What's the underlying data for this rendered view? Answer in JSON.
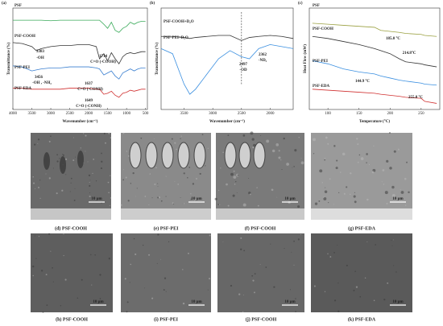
{
  "chart_data": [
    {
      "type": "line",
      "panel": "(a)",
      "xlabel": "Wavenumber (cm⁻¹)",
      "ylabel": "Transmittance (%)",
      "x": [
        4000,
        3750,
        3500,
        3383,
        3250,
        3000,
        2750,
        2500,
        2250,
        2000,
        1800,
        1714,
        1600,
        1500,
        1400,
        1300,
        1200,
        1100,
        1000,
        900,
        800,
        700,
        600,
        500
      ],
      "xlim": [
        4000,
        450
      ],
      "xticks": [
        4000,
        3500,
        3000,
        2500,
        2000,
        1500,
        1000,
        500
      ],
      "ylim": [
        0,
        100
      ],
      "series": [
        {
          "name": "PSF",
          "color": "#3aaa5a",
          "values": [
            88,
            88,
            88,
            88,
            88,
            87.5,
            88,
            88,
            88,
            88,
            88,
            88,
            84,
            80,
            86,
            78,
            76,
            80,
            82,
            86,
            84,
            86,
            87,
            87
          ]
        },
        {
          "name": "PSF-COOH",
          "color": "#333333",
          "values": [
            66,
            65,
            62,
            58,
            60,
            62,
            63,
            63,
            64,
            64,
            62,
            50,
            55,
            48,
            56,
            50,
            45,
            52,
            55,
            56,
            55,
            56,
            57,
            57
          ]
        },
        {
          "name": "PSF-PEI",
          "color": "#3a7fd0",
          "values": [
            43,
            42,
            38,
            39,
            40,
            41,
            41,
            42,
            42,
            42,
            41,
            40,
            34,
            36,
            38,
            33,
            30,
            36,
            38,
            40,
            38,
            40,
            41,
            41
          ]
        },
        {
          "name": "PSF-EDA",
          "color": "#d03030",
          "values": [
            21,
            21,
            20,
            20,
            20,
            20,
            20,
            21,
            21,
            21,
            20,
            20,
            15,
            16,
            18,
            14,
            12,
            16,
            17,
            19,
            18,
            19,
            20,
            20
          ]
        }
      ],
      "annotations": [
        "3383",
        "-OH",
        "1714",
        "C=O (-COOH)",
        "3456",
        "-OH , -NH₂",
        "1637",
        "C=O (-CONH)",
        "1649",
        "C=O (-CONH)"
      ]
    },
    {
      "type": "line",
      "panel": "(b)",
      "xlabel": "Wavenumber (cm⁻¹)",
      "ylabel": "Transmittance (%)",
      "x": [
        3900,
        3700,
        3500,
        3400,
        3300,
        3100,
        2900,
        2700,
        2500,
        2362,
        2200,
        2000,
        1800,
        1600
      ],
      "xlim": [
        3900,
        1600
      ],
      "xticks": [
        3500,
        3000,
        2500,
        2000
      ],
      "ylim": [
        0,
        100
      ],
      "series": [
        {
          "name": "PSF-COOH+D₂O",
          "color": "#333333",
          "values": [
            72,
            72,
            71,
            70,
            71,
            72,
            73,
            73,
            68,
            71,
            72,
            73,
            72,
            70
          ]
        },
        {
          "name": "PSF-PEI+D₂O",
          "color": "#3a8fe0",
          "values": [
            60,
            55,
            25,
            15,
            20,
            35,
            50,
            58,
            52,
            50,
            60,
            64,
            62,
            60
          ]
        }
      ],
      "annotations": [
        "2497",
        "-OD",
        "2362",
        "-ND₂"
      ]
    },
    {
      "type": "line",
      "panel": "(c)",
      "xlabel": "Temperature (°C)",
      "ylabel": "Heat Flow (mW)",
      "x": [
        75,
        100,
        125,
        150,
        175,
        185,
        200,
        214.8,
        225,
        250,
        255.8,
        275
      ],
      "xlim": [
        70,
        280
      ],
      "xticks": [
        100,
        150,
        200,
        250
      ],
      "ylim": [
        0,
        100
      ],
      "series": [
        {
          "name": "PSF",
          "color": "#9aa040",
          "values": [
            85,
            84,
            83,
            82,
            81,
            78,
            77,
            76,
            75,
            74,
            73,
            72
          ]
        },
        {
          "name": "PSF-COOH",
          "color": "#333333",
          "values": [
            72,
            70,
            67,
            64,
            60,
            58,
            55,
            50,
            47,
            45,
            44,
            42
          ]
        },
        {
          "name": "PSF-PEI",
          "color": "#3a8fe0",
          "values": [
            48,
            45,
            40,
            37,
            35,
            33,
            31,
            29,
            28,
            26,
            25,
            24
          ]
        },
        {
          "name": "PSF-EDA",
          "color": "#d03030",
          "values": [
            20,
            19,
            18,
            17,
            16,
            15,
            14,
            13,
            12,
            11,
            8,
            6
          ]
        }
      ],
      "annotations": [
        "185.0 °C",
        "214.8°C",
        "144.9 °C",
        "255.8 °C"
      ]
    }
  ],
  "images": [
    {
      "caption": "(d) PSF-COOH",
      "scale": "10 μm"
    },
    {
      "caption": "(e) PSF-PEI",
      "scale": "10 μm"
    },
    {
      "caption": "(f) PSF-COOH",
      "scale": "10 μm"
    },
    {
      "caption": "(g) PSF-EDA",
      "scale": "10 μm"
    },
    {
      "caption": "(h) PSF-COOH",
      "scale": "10 μm"
    },
    {
      "caption": "(i) PSF-PEI",
      "scale": "10 μm"
    },
    {
      "caption": "(j) PSF-COOH",
      "scale": "10 μm"
    },
    {
      "caption": "(k) PSF-EDA",
      "scale": "10 μm"
    }
  ]
}
